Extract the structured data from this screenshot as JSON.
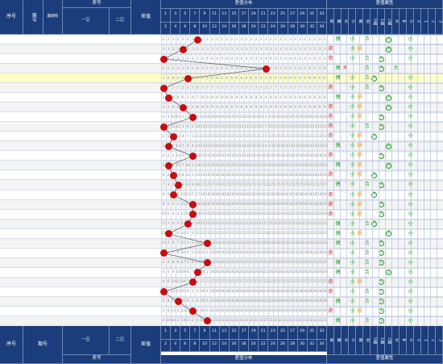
{
  "header": {
    "seq": "序号",
    "period": "期号",
    "period_sub": "期期有",
    "prize": "奖号",
    "zone1": "一区",
    "zone2": "二区",
    "diff": "差值",
    "distribution": "差值分布",
    "attributes": "差值属性"
  },
  "footer": {
    "seq": "序号",
    "period": "期号",
    "zone1": "一区",
    "zone2": "二区",
    "prize": "奖号",
    "diff": "差值",
    "distribution": "差值分布",
    "attributes": "差值属性"
  },
  "dist_top": [
    "1",
    "3",
    "5",
    "7",
    "9",
    "11",
    "13",
    "15",
    "17",
    "19",
    "21",
    "23",
    "25",
    "27",
    "29",
    "31",
    "33"
  ],
  "dist_bot": [
    "2",
    "4",
    "6",
    "8",
    "10",
    "12",
    "14",
    "16",
    "18",
    "20",
    "22",
    "24",
    "26",
    "28",
    "30",
    "32",
    "34"
  ],
  "attr_labels": [
    "奇",
    "偶",
    "大",
    "小",
    "质",
    "合",
    "0路",
    "1路",
    "2路",
    "大",
    "中",
    "小",
    "0",
    "1",
    "2",
    "3"
  ],
  "rows": [
    {
      "n": "1",
      "p": "2024087",
      "z1": "07 10 20 28 34",
      "z2": "05 10",
      "d": "8"
    },
    {
      "n": "2",
      "p": "2024088",
      "z1": "01 02 23 28 32",
      "z2": "03 05",
      "d": "5"
    },
    {
      "n": "3",
      "p": "2024089",
      "z1": "05 06 29 30 34",
      "z2": "07 08",
      "d": "1"
    },
    {
      "n": "4",
      "p": "2024090",
      "z1": "03 11 14 15 29",
      "z2": "01 03",
      "d": "22"
    },
    {
      "n": "5",
      "p": "2024091",
      "z1": "01 08 11 17 21",
      "z2": "01 02",
      "d": "6"
    },
    {
      "n": "6",
      "p": "2024092",
      "z1": "02 04 25 26 31",
      "z2": "01 06",
      "d": "1"
    },
    {
      "n": "7",
      "p": "2024093",
      "z1": "02 06 13 27 31",
      "z2": "02 04",
      "d": "2"
    },
    {
      "n": "8",
      "p": "2024094",
      "z1": "07 12 14 23 28",
      "z2": "01 06",
      "d": "5"
    },
    {
      "n": "9",
      "p": "2024095",
      "z1": "01 07 19 26 27",
      "z2": "04 11",
      "d": "7"
    },
    {
      "n": "10",
      "p": "2024096",
      "z1": "02 03 27 31 32",
      "z2": "03 05",
      "d": "1"
    },
    {
      "n": "11",
      "p": "2024097",
      "z1": "07 11 12 14 19",
      "z2": "02 08",
      "d": "3"
    },
    {
      "n": "12",
      "p": "2024098",
      "z1": "01 15 19 29 30",
      "z2": "08 10",
      "d": "2"
    },
    {
      "n": "13",
      "p": "2024099",
      "z1": "04 10 24 25 28",
      "z2": "05 08",
      "d": "7"
    },
    {
      "n": "14",
      "p": "2024100",
      "z1": "09 16 21 22 23",
      "z2": "06 08",
      "d": "2"
    },
    {
      "n": "15",
      "p": "2024101",
      "z1": "09 13 18 26 29",
      "z2": "01 03",
      "d": "3"
    },
    {
      "n": "16",
      "p": "2024102",
      "z1": "01 05 09 24 35",
      "z2": "04 06",
      "d": "4"
    },
    {
      "n": "17",
      "p": "2024103",
      "z1": "01 02 03 18 25",
      "z2": "01 10",
      "d": "3"
    },
    {
      "n": "18",
      "p": "2024104",
      "z1": "01 04 09 13 17",
      "z2": "08 09",
      "d": "7"
    },
    {
      "n": "19",
      "p": "2024105",
      "z1": "04 11 16 22 26",
      "z2": "01 10",
      "d": "7"
    },
    {
      "n": "20",
      "p": "2024106",
      "z1": "05 11 19 22 26",
      "z2": "02 09",
      "d": "6"
    },
    {
      "n": "21",
      "p": "2024107",
      "z1": "05 12 19 22 26",
      "z2": "05 07",
      "d": "2"
    },
    {
      "n": "22",
      "p": "2024108",
      "z1": "10 15 16 19 25",
      "z2": "02 12",
      "d": "10"
    },
    {
      "n": "23",
      "p": "2024109",
      "z1": "02 06 20 24 27",
      "z2": "04 05",
      "d": "1"
    },
    {
      "n": "24",
      "p": "2024110",
      "z1": "01 03 12 18 19",
      "z2": "03 12",
      "d": "10"
    },
    {
      "n": "25",
      "p": "2024111",
      "z1": "03 09 17 20 30",
      "z2": "01 09",
      "d": "8"
    },
    {
      "n": "26",
      "p": "2024112",
      "z1": "05 15 24 31 34",
      "z2": "03 10",
      "d": "7"
    },
    {
      "n": "27",
      "p": "2024113",
      "z1": "04 09 16 18 34",
      "z2": "04 05",
      "d": "1"
    },
    {
      "n": "28",
      "p": "2024114",
      "z1": "12 27 30 34 35",
      "z2": "04 08",
      "d": "4"
    },
    {
      "n": "29",
      "p": "2024115",
      "z1": "08 11 24 28 29",
      "z2": "02 09",
      "d": "7"
    },
    {
      "n": "30",
      "p": "2024116",
      "z1": "07 08 24 30 33",
      "z2": "02 12",
      "d": "10"
    }
  ],
  "colors": {
    "header_bg": "#1b3d7b",
    "ball": "#c60d10",
    "highlight_row": "#ffffc7",
    "alt_row": "#f4f4f4",
    "attr_green": "#1c9b2a",
    "attr_red": "#c3151a",
    "attr_orange": "#e08a00"
  }
}
